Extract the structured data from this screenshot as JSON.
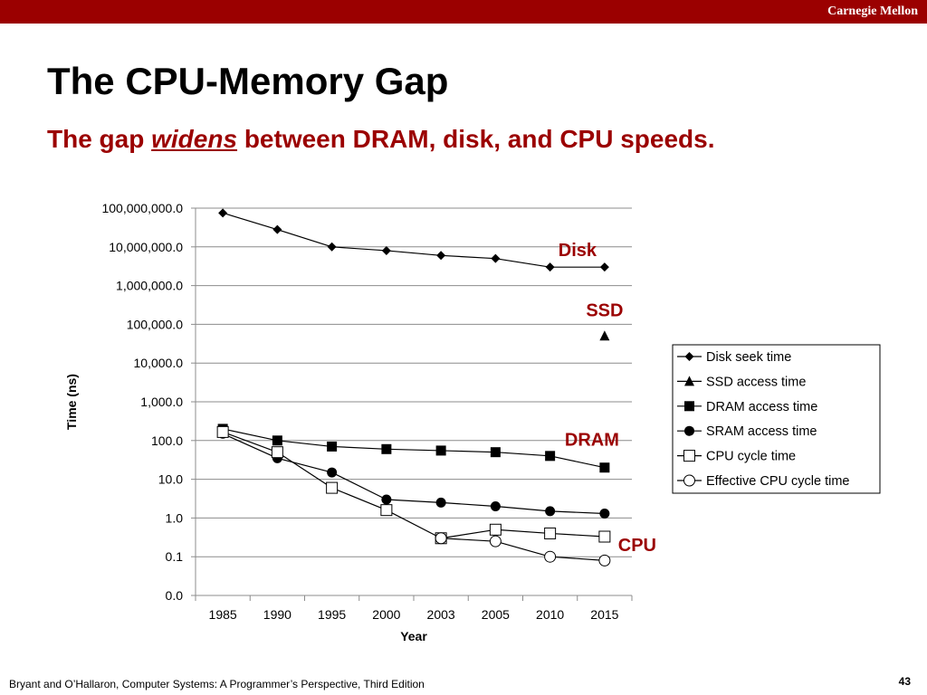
{
  "header": {
    "brand": "Carnegie Mellon"
  },
  "slide": {
    "title": "The CPU-Memory Gap",
    "subtitle_pre": "The gap ",
    "subtitle_em": "widens",
    "subtitle_post": " between DRAM, disk, and CPU speeds."
  },
  "footer": {
    "citation": "Bryant and O’Hallaron, Computer Systems: A Programmer’s Perspective, Third Edition",
    "page_number": "43"
  },
  "colors": {
    "accent": "#9b0000"
  },
  "chart_data": {
    "type": "line",
    "y_scale": "log",
    "xlabel": "Year",
    "ylabel": "Time (ns)",
    "categories": [
      "1985",
      "1990",
      "1995",
      "2000",
      "2003",
      "2005",
      "2010",
      "2015"
    ],
    "ylim": [
      0.01,
      100000000
    ],
    "y_ticks": [
      {
        "value": 100000000,
        "label": "100,000,000.0"
      },
      {
        "value": 10000000,
        "label": "10,000,000.0"
      },
      {
        "value": 1000000,
        "label": "1,000,000.0"
      },
      {
        "value": 100000,
        "label": "100,000.0"
      },
      {
        "value": 10000,
        "label": "10,000.0"
      },
      {
        "value": 1000,
        "label": "1,000.0"
      },
      {
        "value": 100,
        "label": "100.0"
      },
      {
        "value": 10,
        "label": "10.0"
      },
      {
        "value": 1,
        "label": "1.0"
      },
      {
        "value": 0.1,
        "label": "0.1"
      },
      {
        "value": 0.01,
        "label": "0.0"
      }
    ],
    "grid": true,
    "legend_position": "right",
    "series": [
      {
        "name": "Disk seek time",
        "marker": "diamond",
        "values": [
          75000000,
          28000000,
          10000000,
          8000000,
          6000000,
          5000000,
          3000000,
          3000000
        ]
      },
      {
        "name": "SSD access time",
        "marker": "triangle",
        "values": [
          null,
          null,
          null,
          null,
          null,
          null,
          null,
          50000
        ]
      },
      {
        "name": "DRAM access time",
        "marker": "square",
        "values": [
          200,
          100,
          70,
          60,
          55,
          50,
          40,
          20
        ]
      },
      {
        "name": "SRAM access time",
        "marker": "circle",
        "values": [
          150,
          35,
          15,
          3,
          2.5,
          2,
          1.5,
          1.3
        ]
      },
      {
        "name": "CPU cycle time",
        "marker": "open-square",
        "values": [
          166,
          50,
          6,
          1.6,
          0.3,
          0.5,
          0.4,
          0.33
        ]
      },
      {
        "name": "Effective CPU cycle time",
        "marker": "open-circle",
        "values": [
          null,
          null,
          null,
          null,
          0.3,
          0.25,
          0.1,
          0.08
        ]
      }
    ],
    "annotations": [
      {
        "text": "Disk",
        "series": "Disk seek time"
      },
      {
        "text": "SSD",
        "series": "SSD access time"
      },
      {
        "text": "DRAM",
        "series": "DRAM access time"
      },
      {
        "text": "CPU",
        "series": "CPU cycle time"
      }
    ]
  }
}
